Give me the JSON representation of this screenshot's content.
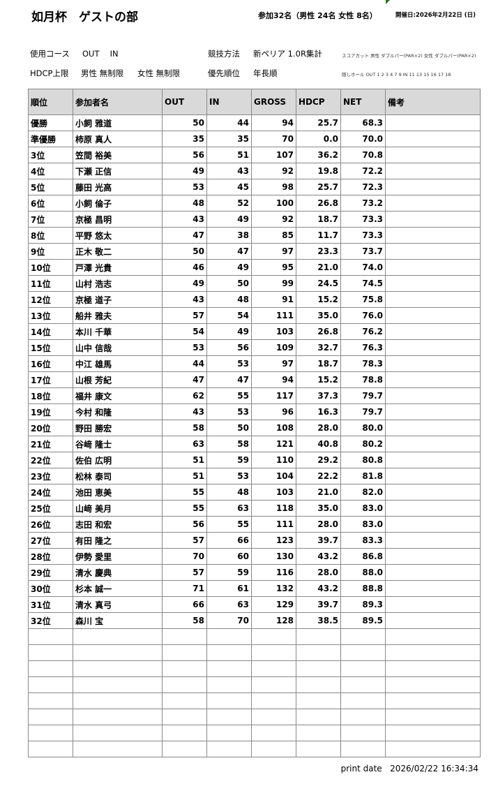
{
  "header": {
    "title": "如月杯　ゲストの部",
    "participants": "参加32名（男性 24名  女性 8名）",
    "event_date": "開催日:2026年2月22日 (日)"
  },
  "info": {
    "course_label": "使用コース",
    "course_value": "OUT　 IN",
    "hdcp_label": "HDCP上限",
    "hdcp_male": "男性 無制限",
    "hdcp_female": "女性 無制限",
    "method_label": "競技方法",
    "method_value": "新ペリア  1.0R集計",
    "priority_label": "優先順位",
    "priority_value": "年長順",
    "score_cut": "スコアカット  男性 ダブルパー(PAR×2)  女性 ダブルパー(PAR×2)",
    "hidden_holes": "隠しホール  OUT  1 2 3 4   7  9   IN   11  13  15 16 17 18"
  },
  "table": {
    "columns": [
      "順位",
      "参加者名",
      "OUT",
      "IN",
      "GROSS",
      "HDCP",
      "NET",
      "備考"
    ],
    "rows": [
      [
        "優勝",
        "小飼 雅道",
        "50",
        "44",
        "94",
        "25.7",
        "68.3",
        ""
      ],
      [
        "準優勝",
        "柿原 真人",
        "35",
        "35",
        "70",
        "0.0",
        "70.0",
        ""
      ],
      [
        "3位",
        "笠間 裕美",
        "56",
        "51",
        "107",
        "36.2",
        "70.8",
        ""
      ],
      [
        "4位",
        "下瀬 正信",
        "49",
        "43",
        "92",
        "19.8",
        "72.2",
        ""
      ],
      [
        "5位",
        "藤田 光高",
        "53",
        "45",
        "98",
        "25.7",
        "72.3",
        ""
      ],
      [
        "6位",
        "小飼 倫子",
        "48",
        "52",
        "100",
        "26.8",
        "73.2",
        ""
      ],
      [
        "7位",
        "京極 昌明",
        "43",
        "49",
        "92",
        "18.7",
        "73.3",
        ""
      ],
      [
        "8位",
        "平野 悠太",
        "47",
        "38",
        "85",
        "11.7",
        "73.3",
        ""
      ],
      [
        "9位",
        "正木 敬二",
        "50",
        "47",
        "97",
        "23.3",
        "73.7",
        ""
      ],
      [
        "10位",
        "戸澤 光貴",
        "46",
        "49",
        "95",
        "21.0",
        "74.0",
        ""
      ],
      [
        "11位",
        "山村 浩志",
        "49",
        "50",
        "99",
        "24.5",
        "74.5",
        ""
      ],
      [
        "12位",
        "京極 道子",
        "43",
        "48",
        "91",
        "15.2",
        "75.8",
        ""
      ],
      [
        "13位",
        "船井 雅夫",
        "57",
        "54",
        "111",
        "35.0",
        "76.0",
        ""
      ],
      [
        "14位",
        "本川 千華",
        "54",
        "49",
        "103",
        "26.8",
        "76.2",
        ""
      ],
      [
        "15位",
        "山中 信哉",
        "53",
        "56",
        "109",
        "32.7",
        "76.3",
        ""
      ],
      [
        "16位",
        "中江 雄馬",
        "44",
        "53",
        "97",
        "18.7",
        "78.3",
        ""
      ],
      [
        "17位",
        "山根 芳紀",
        "47",
        "47",
        "94",
        "15.2",
        "78.8",
        ""
      ],
      [
        "18位",
        "福井 康文",
        "62",
        "55",
        "117",
        "37.3",
        "79.7",
        ""
      ],
      [
        "19位",
        "今村 和隆",
        "43",
        "53",
        "96",
        "16.3",
        "79.7",
        ""
      ],
      [
        "20位",
        "野田 勝宏",
        "58",
        "50",
        "108",
        "28.0",
        "80.0",
        ""
      ],
      [
        "21位",
        "谷﨑 隆士",
        "63",
        "58",
        "121",
        "40.8",
        "80.2",
        ""
      ],
      [
        "22位",
        "佐伯 広明",
        "51",
        "59",
        "110",
        "29.2",
        "80.8",
        ""
      ],
      [
        "23位",
        "松林 泰司",
        "51",
        "53",
        "104",
        "22.2",
        "81.8",
        ""
      ],
      [
        "24位",
        "池田 恵美",
        "55",
        "48",
        "103",
        "21.0",
        "82.0",
        ""
      ],
      [
        "25位",
        "山﨑 美月",
        "55",
        "63",
        "118",
        "35.0",
        "83.0",
        ""
      ],
      [
        "26位",
        "志田 和宏",
        "56",
        "55",
        "111",
        "28.0",
        "83.0",
        ""
      ],
      [
        "27位",
        "有田 隆之",
        "57",
        "66",
        "123",
        "39.7",
        "83.3",
        ""
      ],
      [
        "28位",
        "伊勢 愛里",
        "70",
        "60",
        "130",
        "43.2",
        "86.8",
        ""
      ],
      [
        "29位",
        "清水 慶典",
        "57",
        "59",
        "116",
        "28.0",
        "88.0",
        ""
      ],
      [
        "30位",
        "杉本 誠一",
        "71",
        "61",
        "132",
        "43.2",
        "88.8",
        ""
      ],
      [
        "31位",
        "清水 真弓",
        "66",
        "63",
        "129",
        "39.7",
        "89.3",
        ""
      ],
      [
        "32位",
        "森川 宝",
        "58",
        "70",
        "128",
        "38.5",
        "89.5",
        ""
      ]
    ]
  },
  "footer": {
    "print_label": "print date",
    "print_value": "2026/02/22 16:34:34"
  }
}
